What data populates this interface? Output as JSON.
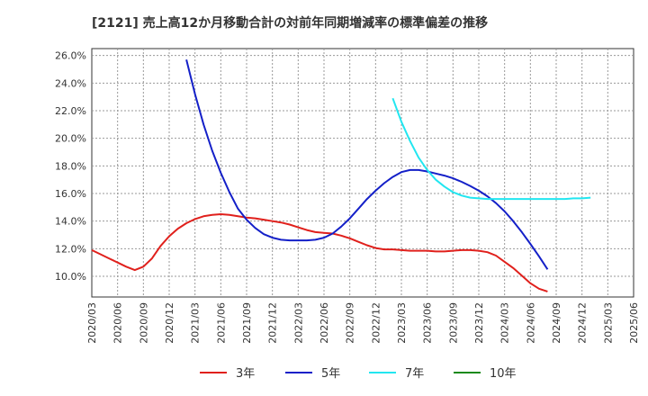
{
  "chart_data": {
    "type": "line",
    "title": "[2121]  売上高12か月移動合計の対前年同期増減率の標準偏差の推移",
    "xlabel": "",
    "ylabel": "",
    "ylim": [
      8.5,
      26.5
    ],
    "y_ticks": [
      "10.0%",
      "12.0%",
      "14.0%",
      "16.0%",
      "18.0%",
      "20.0%",
      "22.0%",
      "24.0%",
      "26.0%"
    ],
    "y_tick_values": [
      10,
      12,
      14,
      16,
      18,
      20,
      22,
      24,
      26
    ],
    "x_ticks": [
      "2020/03",
      "2020/06",
      "2020/09",
      "2020/12",
      "2021/03",
      "2021/06",
      "2021/09",
      "2021/12",
      "2022/03",
      "2022/06",
      "2022/09",
      "2022/12",
      "2023/03",
      "2023/06",
      "2023/09",
      "2023/12",
      "2024/03",
      "2024/06",
      "2024/09",
      "2024/12",
      "2025/03",
      "2025/06"
    ],
    "legend_position": "bottom",
    "grid": true,
    "series": [
      {
        "name": "3年",
        "color": "#e0201c",
        "start": "2020/03",
        "values": [
          11.9,
          11.6,
          11.3,
          11.0,
          10.7,
          10.45,
          10.7,
          11.3,
          12.2,
          12.9,
          13.45,
          13.85,
          14.15,
          14.35,
          14.45,
          14.5,
          14.45,
          14.35,
          14.25,
          14.2,
          14.1,
          14.0,
          13.9,
          13.75,
          13.55,
          13.35,
          13.2,
          13.15,
          13.1,
          12.95,
          12.75,
          12.5,
          12.25,
          12.05,
          11.95,
          11.95,
          11.9,
          11.85,
          11.85,
          11.85,
          11.8,
          11.8,
          11.85,
          11.9,
          11.9,
          11.85,
          11.75,
          11.5,
          11.05,
          10.6,
          10.05,
          9.5,
          9.1,
          8.9
        ]
      },
      {
        "name": "5年",
        "color": "#1420c8",
        "start": "2021/02",
        "values": [
          25.7,
          23.2,
          21.0,
          19.1,
          17.5,
          16.1,
          14.9,
          14.1,
          13.5,
          13.05,
          12.8,
          12.65,
          12.6,
          12.6,
          12.6,
          12.65,
          12.8,
          13.1,
          13.6,
          14.2,
          14.9,
          15.6,
          16.2,
          16.75,
          17.2,
          17.55,
          17.7,
          17.7,
          17.6,
          17.45,
          17.3,
          17.1,
          16.85,
          16.55,
          16.2,
          15.8,
          15.3,
          14.7,
          14.0,
          13.2,
          12.35,
          11.45,
          10.5
        ]
      },
      {
        "name": "7年",
        "color": "#22e6f0",
        "start": "2023/02",
        "values": [
          22.9,
          21.2,
          19.8,
          18.6,
          17.7,
          17.0,
          16.5,
          16.1,
          15.85,
          15.7,
          15.65,
          15.6,
          15.6,
          15.6,
          15.6,
          15.6,
          15.6,
          15.6,
          15.6,
          15.6,
          15.6,
          15.65,
          15.65,
          15.7
        ]
      },
      {
        "name": "10年",
        "color": "#1a8a1a",
        "start": "2025/03",
        "values": []
      }
    ]
  }
}
